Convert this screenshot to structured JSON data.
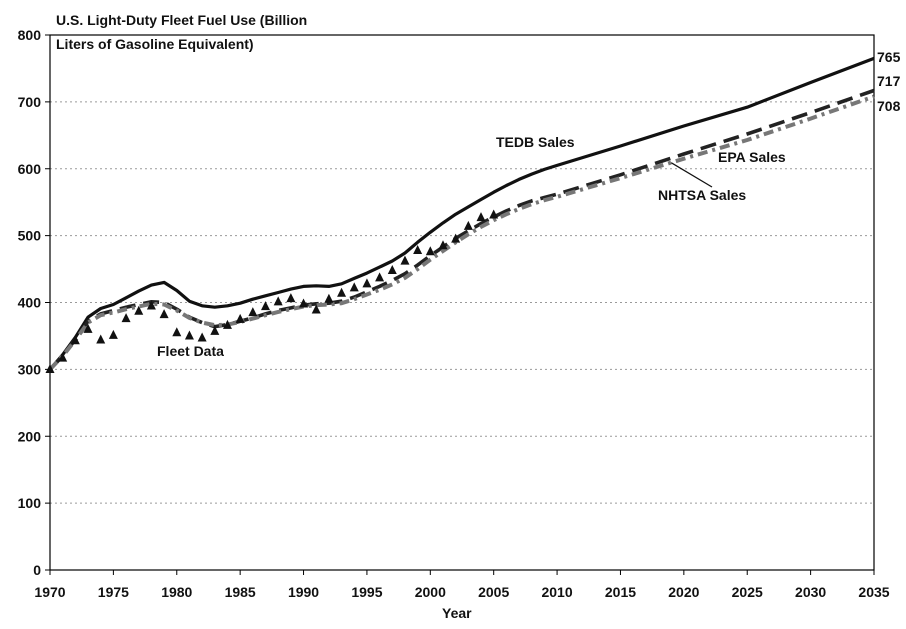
{
  "chart_data": {
    "type": "line",
    "title": "U.S. Light-Duty Fleet Fuel Use (Billion",
    "title_line2": "Liters of Gasoline Equivalent)",
    "xlabel": "Year",
    "ylabel": "",
    "xlim": [
      1970,
      2035
    ],
    "ylim": [
      0,
      800
    ],
    "x_ticks": [
      "1970",
      "1975",
      "1980",
      "1985",
      "1990",
      "1995",
      "2000",
      "2005",
      "2010",
      "2015",
      "2020",
      "2025",
      "2030",
      "2035"
    ],
    "y_ticks": [
      "0",
      "100",
      "200",
      "300",
      "400",
      "500",
      "600",
      "700",
      "800"
    ],
    "grid": "horizontal dotted",
    "series": [
      {
        "name": "TEDB Sales",
        "style": "solid",
        "color": "#111111",
        "points": [
          [
            1970,
            300
          ],
          [
            1971,
            322
          ],
          [
            1972,
            348
          ],
          [
            1973,
            378
          ],
          [
            1974,
            391
          ],
          [
            1975,
            397
          ],
          [
            1976,
            407
          ],
          [
            1977,
            417
          ],
          [
            1978,
            426
          ],
          [
            1979,
            430
          ],
          [
            1980,
            418
          ],
          [
            1981,
            402
          ],
          [
            1982,
            395
          ],
          [
            1983,
            393
          ],
          [
            1984,
            395
          ],
          [
            1985,
            399
          ],
          [
            1986,
            405
          ],
          [
            1987,
            410
          ],
          [
            1988,
            415
          ],
          [
            1989,
            420
          ],
          [
            1990,
            424
          ],
          [
            1991,
            425
          ],
          [
            1992,
            424
          ],
          [
            1993,
            428
          ],
          [
            1994,
            436
          ],
          [
            1995,
            444
          ],
          [
            1996,
            453
          ],
          [
            1997,
            462
          ],
          [
            1998,
            474
          ],
          [
            1999,
            490
          ],
          [
            2000,
            505
          ],
          [
            2001,
            519
          ],
          [
            2002,
            532
          ],
          [
            2003,
            543
          ],
          [
            2004,
            554
          ],
          [
            2005,
            565
          ],
          [
            2006,
            575
          ],
          [
            2007,
            584
          ],
          [
            2008,
            592
          ],
          [
            2009,
            599
          ],
          [
            2010,
            605
          ],
          [
            2015,
            634
          ],
          [
            2020,
            664
          ],
          [
            2025,
            692
          ],
          [
            2030,
            729
          ],
          [
            2035,
            765
          ]
        ]
      },
      {
        "name": "EPA Sales",
        "style": "dashed",
        "color": "#222222",
        "points": [
          [
            1970,
            300
          ],
          [
            1971,
            320
          ],
          [
            1972,
            345
          ],
          [
            1973,
            372
          ],
          [
            1974,
            383
          ],
          [
            1975,
            388
          ],
          [
            1976,
            393
          ],
          [
            1977,
            397
          ],
          [
            1978,
            401
          ],
          [
            1979,
            400
          ],
          [
            1980,
            390
          ],
          [
            1981,
            378
          ],
          [
            1982,
            370
          ],
          [
            1983,
            364
          ],
          [
            1984,
            367
          ],
          [
            1985,
            372
          ],
          [
            1986,
            377
          ],
          [
            1987,
            383
          ],
          [
            1988,
            388
          ],
          [
            1989,
            392
          ],
          [
            1990,
            396
          ],
          [
            1991,
            398
          ],
          [
            1992,
            399
          ],
          [
            1993,
            402
          ],
          [
            1994,
            408
          ],
          [
            1995,
            416
          ],
          [
            1996,
            424
          ],
          [
            1997,
            433
          ],
          [
            1998,
            443
          ],
          [
            1999,
            456
          ],
          [
            2000,
            470
          ],
          [
            2001,
            483
          ],
          [
            2002,
            496
          ],
          [
            2003,
            507
          ],
          [
            2004,
            518
          ],
          [
            2005,
            528
          ],
          [
            2006,
            537
          ],
          [
            2007,
            545
          ],
          [
            2008,
            552
          ],
          [
            2009,
            557
          ],
          [
            2010,
            562
          ],
          [
            2015,
            591
          ],
          [
            2020,
            622
          ],
          [
            2025,
            652
          ],
          [
            2030,
            684
          ],
          [
            2035,
            717
          ]
        ]
      },
      {
        "name": "NHTSA Sales",
        "style": "dash-dot",
        "color": "#777777",
        "points": [
          [
            1970,
            300
          ],
          [
            1971,
            320
          ],
          [
            1972,
            344
          ],
          [
            1973,
            370
          ],
          [
            1974,
            381
          ],
          [
            1975,
            385
          ],
          [
            1976,
            390
          ],
          [
            1977,
            394
          ],
          [
            1978,
            398
          ],
          [
            1979,
            397
          ],
          [
            1980,
            388
          ],
          [
            1981,
            377
          ],
          [
            1982,
            370
          ],
          [
            1983,
            366
          ],
          [
            1984,
            367
          ],
          [
            1985,
            371
          ],
          [
            1986,
            376
          ],
          [
            1987,
            381
          ],
          [
            1988,
            386
          ],
          [
            1989,
            390
          ],
          [
            1990,
            394
          ],
          [
            1991,
            396
          ],
          [
            1992,
            397
          ],
          [
            1993,
            399
          ],
          [
            1994,
            405
          ],
          [
            1995,
            412
          ],
          [
            1996,
            419
          ],
          [
            1997,
            427
          ],
          [
            1998,
            437
          ],
          [
            1999,
            450
          ],
          [
            2000,
            464
          ],
          [
            2001,
            477
          ],
          [
            2002,
            490
          ],
          [
            2003,
            502
          ],
          [
            2004,
            513
          ],
          [
            2005,
            523
          ],
          [
            2006,
            532
          ],
          [
            2007,
            540
          ],
          [
            2008,
            547
          ],
          [
            2009,
            553
          ],
          [
            2010,
            558
          ],
          [
            2015,
            586
          ],
          [
            2020,
            615
          ],
          [
            2025,
            643
          ],
          [
            2030,
            675
          ],
          [
            2035,
            708
          ]
        ]
      },
      {
        "name": "Fleet Data",
        "style": "triangle-markers",
        "color": "#111111",
        "points": [
          [
            1970,
            300
          ],
          [
            1971,
            317
          ],
          [
            1972,
            343
          ],
          [
            1973,
            360
          ],
          [
            1974,
            344
          ],
          [
            1975,
            351
          ],
          [
            1976,
            376
          ],
          [
            1977,
            387
          ],
          [
            1978,
            395
          ],
          [
            1979,
            382
          ],
          [
            1980,
            355
          ],
          [
            1981,
            350
          ],
          [
            1982,
            347
          ],
          [
            1983,
            357
          ],
          [
            1984,
            366
          ],
          [
            1985,
            375
          ],
          [
            1986,
            385
          ],
          [
            1987,
            394
          ],
          [
            1988,
            401
          ],
          [
            1989,
            406
          ],
          [
            1990,
            398
          ],
          [
            1991,
            389
          ],
          [
            1992,
            405
          ],
          [
            1993,
            414
          ],
          [
            1994,
            422
          ],
          [
            1995,
            428
          ],
          [
            1996,
            437
          ],
          [
            1997,
            448
          ],
          [
            1998,
            462
          ],
          [
            1999,
            478
          ],
          [
            2000,
            476
          ],
          [
            2001,
            485
          ],
          [
            2002,
            495
          ],
          [
            2003,
            514
          ],
          [
            2004,
            527
          ],
          [
            2005,
            531
          ]
        ]
      }
    ],
    "labels": {
      "tedb": "TEDB Sales",
      "epa": "EPA Sales",
      "nhtsa": "NHTSA Sales",
      "fleet": "Fleet Data"
    },
    "end_values": [
      "765",
      "717",
      "708"
    ]
  }
}
